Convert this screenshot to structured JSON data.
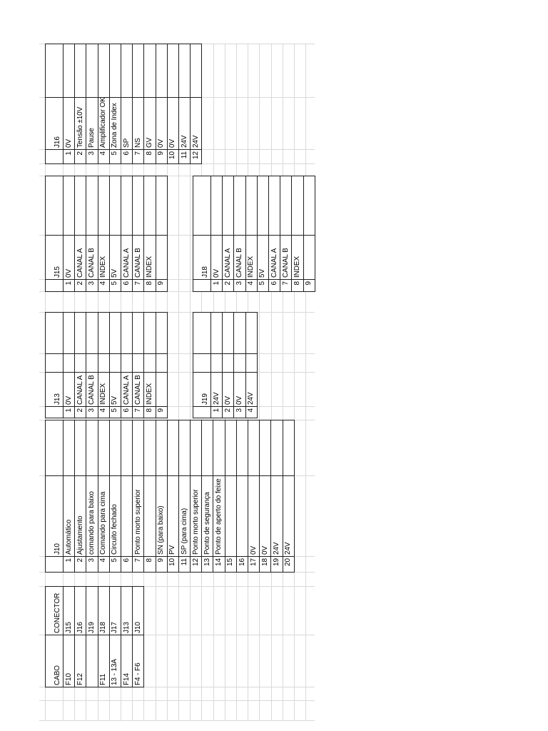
{
  "sheet": {
    "background": "#ffffff",
    "table_border_color": "#1f1f1f",
    "gridline_color": "#d9d9d9",
    "text_color": "#000000"
  },
  "tables": {
    "cabo": {
      "headers": [
        "CABO",
        "CONECTOR"
      ],
      "rows": [
        [
          "F10",
          "J15"
        ],
        [
          "F12",
          "J16"
        ],
        [
          "",
          "J19"
        ],
        [
          "F11",
          "J18"
        ],
        [
          "13 - 13A",
          "J17"
        ],
        [
          "F14",
          "J13"
        ],
        [
          "F4 - F6",
          "J10"
        ]
      ]
    },
    "j10": {
      "rows": [
        {
          "num": "",
          "label": "J10"
        },
        {
          "num": "1",
          "label": "Automático"
        },
        {
          "num": "2",
          "label": "Ajustamento"
        },
        {
          "num": "3",
          "label": "comando para baixo"
        },
        {
          "num": "4",
          "label": "Comando para cima"
        },
        {
          "num": "5",
          "label": "Circuito fechado"
        },
        {
          "num": "6",
          "label": ""
        },
        {
          "num": "7",
          "label": "Ponto morto superior"
        },
        {
          "num": "8",
          "label": ""
        },
        {
          "num": "9",
          "label": "SN (para baixo)"
        },
        {
          "num": "10",
          "label": "PV"
        },
        {
          "num": "11",
          "label": "SP (para cima)"
        },
        {
          "num": "12",
          "label": "Ponto morto superior"
        },
        {
          "num": "13",
          "label": "Ponto de segurança"
        },
        {
          "num": "14",
          "label": "Ponto de aperto do feixe"
        },
        {
          "num": "15",
          "label": ""
        },
        {
          "num": "16",
          "label": ""
        },
        {
          "num": "17",
          "label": "0V"
        },
        {
          "num": "18",
          "label": "0V"
        },
        {
          "num": "19",
          "label": "24V"
        },
        {
          "num": "20",
          "label": "24V"
        }
      ]
    },
    "j13": {
      "rows": [
        {
          "num": "",
          "label": "J13"
        },
        {
          "num": "1",
          "label": "0V"
        },
        {
          "num": "2",
          "label": "CANAL A"
        },
        {
          "num": "3",
          "label": "CANAL B"
        },
        {
          "num": "4",
          "label": "INDEX"
        },
        {
          "num": "5",
          "label": "5V"
        },
        {
          "num": "6",
          "label": "CANAL A"
        },
        {
          "num": "7",
          "label": "CANAL B"
        },
        {
          "num": "8",
          "label": "INDEX"
        },
        {
          "num": "9",
          "label": ""
        }
      ]
    },
    "j19": {
      "rows": [
        {
          "num": "",
          "label": "J19"
        },
        {
          "num": "1",
          "label": "24V"
        },
        {
          "num": "2",
          "label": "0V"
        },
        {
          "num": "3",
          "label": "0V"
        },
        {
          "num": "4",
          "label": "24V"
        }
      ]
    },
    "j15": {
      "rows": [
        {
          "num": "",
          "label": "J15"
        },
        {
          "num": "1",
          "label": "0V"
        },
        {
          "num": "2",
          "label": "CANAL A"
        },
        {
          "num": "3",
          "label": "CANAL B"
        },
        {
          "num": "4",
          "label": "INDEX"
        },
        {
          "num": "5",
          "label": "5V"
        },
        {
          "num": "6",
          "label": "CANAL A"
        },
        {
          "num": "7",
          "label": "CANAL B"
        },
        {
          "num": "8",
          "label": "INDEX"
        },
        {
          "num": "9",
          "label": ""
        }
      ]
    },
    "j18": {
      "rows": [
        {
          "num": "",
          "label": "J18"
        },
        {
          "num": "1",
          "label": "0V"
        },
        {
          "num": "2",
          "label": "CANAL A"
        },
        {
          "num": "3",
          "label": "CANAL B"
        },
        {
          "num": "4",
          "label": "INDEX"
        },
        {
          "num": "5",
          "label": "5V"
        },
        {
          "num": "6",
          "label": "CANAL A"
        },
        {
          "num": "7",
          "label": "CANAL B"
        },
        {
          "num": "8",
          "label": "INDEX"
        },
        {
          "num": "9",
          "label": ""
        }
      ]
    },
    "j16": {
      "rows": [
        {
          "num": "",
          "label": "J16"
        },
        {
          "num": "1",
          "label": "0V"
        },
        {
          "num": "2",
          "label": "Tensão ±10V"
        },
        {
          "num": "3",
          "label": "Pause"
        },
        {
          "num": "4",
          "label": "Amplificador OK"
        },
        {
          "num": "5",
          "label": "Zona de Index"
        },
        {
          "num": "6",
          "label": "SP"
        },
        {
          "num": "7",
          "label": "NS"
        },
        {
          "num": "8",
          "label": "GV"
        },
        {
          "num": "9",
          "label": "0V"
        },
        {
          "num": "10",
          "label": "0V"
        },
        {
          "num": "11",
          "label": "24V"
        },
        {
          "num": "12",
          "label": "24V"
        }
      ]
    }
  }
}
